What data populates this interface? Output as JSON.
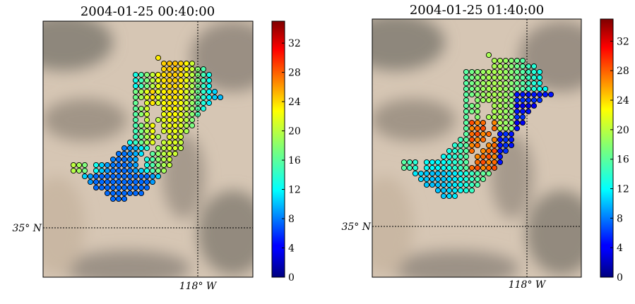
{
  "figure": {
    "colorbar": {
      "colormap": "jet",
      "vmin": 0,
      "vmax": 35,
      "ticks": [
        "0",
        "4",
        "8",
        "12",
        "16",
        "20",
        "24",
        "28",
        "32"
      ]
    },
    "axis_labels": {
      "lat": "35° N",
      "lon": "118° W"
    },
    "map_colors": {
      "terrain_light": "#d9c7b6",
      "terrain_dark": "#8d857a"
    }
  },
  "chart_data": [
    {
      "type": "scatter",
      "title": "2004-01-25 00:40:00",
      "xlabel": "",
      "ylabel": "",
      "lon_tick": "118° W",
      "lat_tick": "35° N",
      "colorbar_range": [
        0,
        35
      ],
      "description_values": "Gridded station values over terrain map; values range roughly 8–24",
      "value_range": [
        8,
        24
      ]
    },
    {
      "type": "scatter",
      "title": "2004-01-25 01:40:00",
      "xlabel": "",
      "ylabel": "",
      "lon_tick": "118° W",
      "lat_tick": "35° N",
      "colorbar_range": [
        0,
        35
      ],
      "description_values": "Gridded station values over terrain map; values range roughly 2–30",
      "value_range": [
        2,
        30
      ]
    }
  ]
}
